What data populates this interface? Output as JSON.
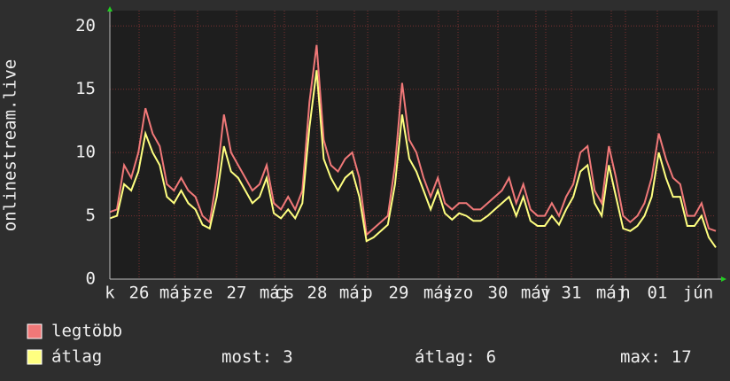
{
  "chart_data": {
    "type": "line",
    "ylabel": "onlinestream.live",
    "ylim": [
      0,
      21
    ],
    "yticks": [
      0,
      5,
      10,
      15,
      20
    ],
    "grid": true,
    "x_labels": [
      "k",
      "26",
      "máj",
      "sze",
      "27",
      "máj",
      "cs",
      "28",
      "máj",
      "p",
      "29",
      "máj",
      "szo",
      "30",
      "máj",
      "v",
      "31",
      "máj",
      "h",
      "01",
      "jún"
    ],
    "series": [
      {
        "name": "legtöbb",
        "color": "#f07878",
        "values": [
          5.3,
          5.5,
          9,
          8,
          10,
          13.5,
          11.5,
          10.5,
          7.5,
          7,
          8,
          7,
          6.5,
          5,
          4.5,
          8,
          13,
          10,
          9,
          8,
          7,
          7.5,
          9,
          6,
          5.5,
          6.5,
          5.5,
          7,
          14,
          18.5,
          11,
          9,
          8.5,
          9.5,
          10,
          8,
          3.5,
          4,
          4.5,
          5,
          9,
          15.5,
          11,
          10,
          8,
          6.5,
          8,
          6,
          5.5,
          6,
          6,
          5.5,
          5.5,
          6,
          6.5,
          7,
          8,
          6,
          7.5,
          5.5,
          5,
          5,
          6,
          5,
          6.5,
          7.5,
          10,
          10.5,
          7,
          6,
          10.5,
          8,
          5,
          4.5,
          5,
          6,
          8,
          11.5,
          9.5,
          8,
          7.5,
          5,
          5,
          6,
          4,
          3.8
        ]
      },
      {
        "name": "átlag",
        "color": "#ffff80",
        "values": [
          4.8,
          5,
          7.5,
          7,
          8.5,
          11.5,
          10,
          9,
          6.5,
          6,
          7,
          6,
          5.5,
          4.3,
          4,
          6.5,
          10.5,
          8.5,
          8,
          7,
          6,
          6.5,
          8,
          5.2,
          4.8,
          5.5,
          4.8,
          6,
          12,
          16.5,
          9.5,
          8,
          7,
          8,
          8.5,
          6.5,
          3,
          3.3,
          3.8,
          4.3,
          7.5,
          13,
          9.5,
          8.5,
          7,
          5.5,
          7,
          5.2,
          4.7,
          5.2,
          5,
          4.6,
          4.6,
          5,
          5.5,
          6,
          6.5,
          5,
          6.5,
          4.6,
          4.2,
          4.2,
          5,
          4.3,
          5.5,
          6.5,
          8.5,
          9,
          6,
          5,
          9,
          6.5,
          4,
          3.8,
          4.2,
          5,
          6.5,
          10,
          8,
          6.5,
          6.5,
          4.2,
          4.2,
          5,
          3.3,
          2.5
        ]
      }
    ],
    "stats": [
      {
        "label": "most:",
        "value": 3
      },
      {
        "label": "átlag:",
        "value": 6
      },
      {
        "label": "max:",
        "value": 17
      }
    ]
  }
}
